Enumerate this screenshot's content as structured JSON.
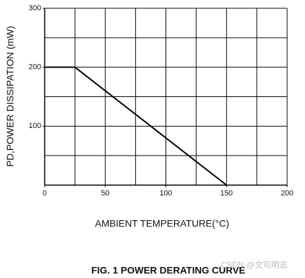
{
  "chart_data": {
    "type": "line",
    "title": "FIG. 1 POWER DERATING CURVE",
    "xlabel": "AMBIENT TEMPERATURE(°C)",
    "ylabel": "PD,POWER DISSIPATION (mW)",
    "watermark": "CSDN @文可明志",
    "x": [
      0,
      25,
      150
    ],
    "series": [
      {
        "color": "#000000",
        "values": [
          200,
          200,
          0
        ]
      }
    ],
    "xlim": [
      0,
      200
    ],
    "xticks": [
      0,
      50,
      100,
      150,
      200
    ],
    "ylim": [
      0,
      300
    ],
    "yticks": [
      100,
      200,
      300
    ],
    "xgrid": [
      25,
      50,
      75,
      100,
      125,
      150,
      175,
      200
    ],
    "ygrid": [
      50,
      100,
      150,
      200,
      250,
      300
    ],
    "grid": true
  }
}
